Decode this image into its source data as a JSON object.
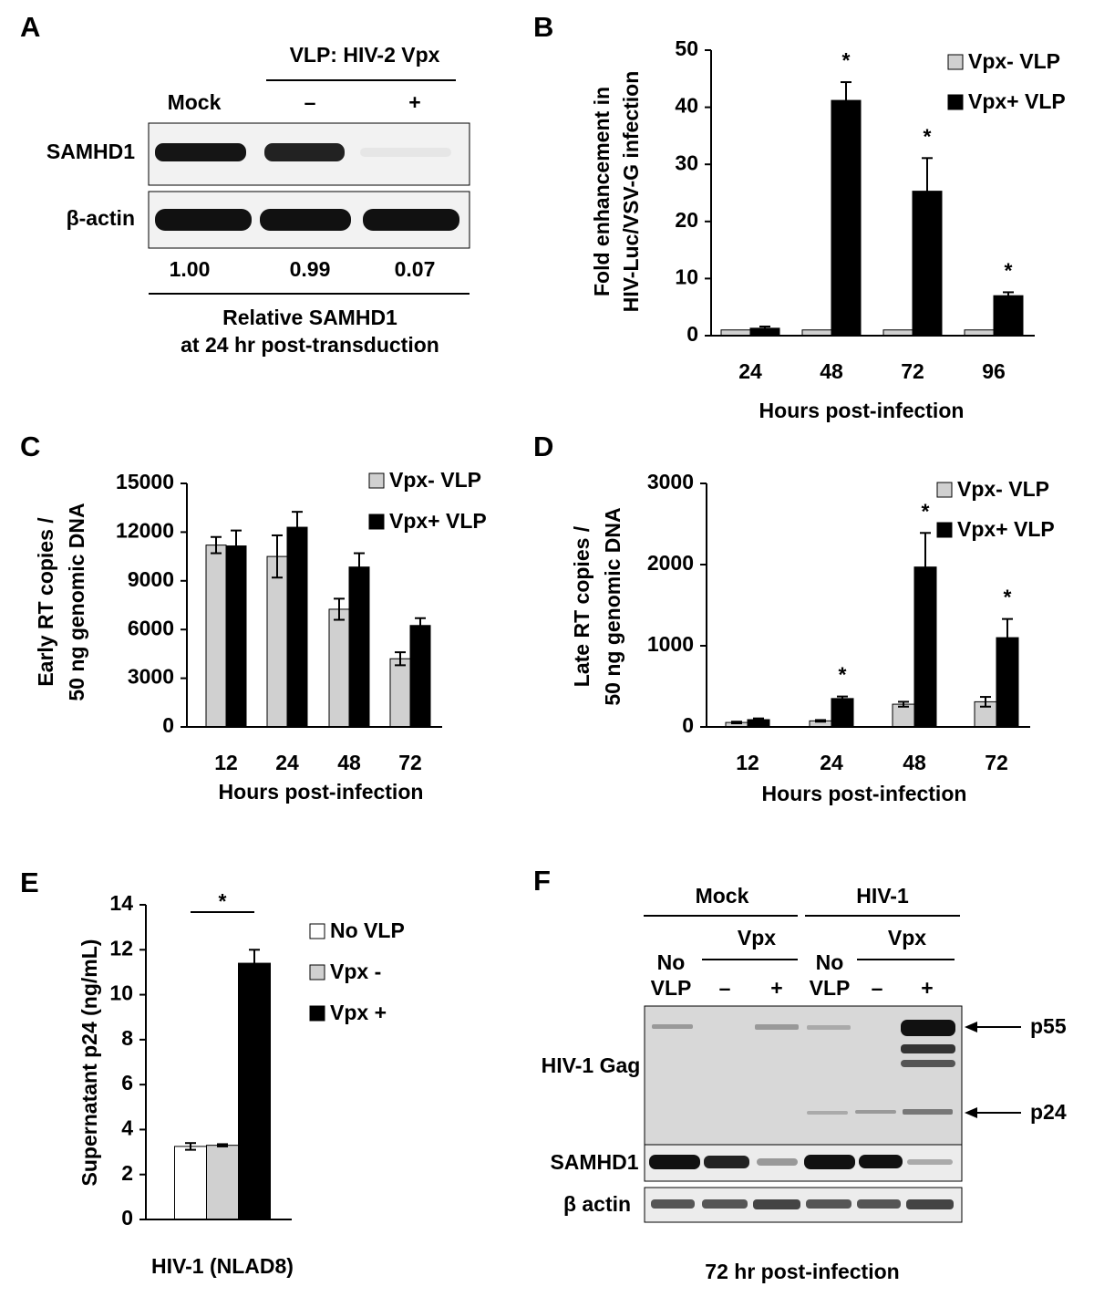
{
  "chart_data": [
    {
      "type": "bar",
      "panel": "B",
      "ylabel": [
        "Fold enhancement in",
        "HIV-Luc/VSV-G infection"
      ],
      "xlabel": "Hours post-infection",
      "categories": [
        "24",
        "48",
        "72",
        "96"
      ],
      "series": [
        {
          "name": "Vpx- VLP",
          "color": "#d0d0d0",
          "values": [
            1,
            1,
            1,
            1
          ]
        },
        {
          "name": "Vpx+ VLP",
          "color": "#000000",
          "values": [
            1.3,
            41.2,
            25.3,
            7
          ],
          "errors": [
            0.3,
            3.2,
            5.8,
            0.6
          ]
        }
      ],
      "significance": [
        null,
        "*",
        "*",
        "*"
      ],
      "ylim": [
        0,
        50
      ],
      "yticks": [
        0,
        10,
        20,
        30,
        40,
        50
      ]
    },
    {
      "type": "bar",
      "panel": "C",
      "ylabel": [
        "Early RT copies /",
        "50 ng genomic DNA"
      ],
      "xlabel": "Hours post-infection",
      "categories": [
        "12",
        "24",
        "48",
        "72"
      ],
      "series": [
        {
          "name": "Vpx- VLP",
          "color": "#d0d0d0",
          "values": [
            11200,
            10500,
            7250,
            4200
          ],
          "errors": [
            500,
            1300,
            650,
            400
          ]
        },
        {
          "name": "Vpx+ VLP",
          "color": "#000000",
          "values": [
            11150,
            12300,
            9850,
            6250
          ],
          "errors": [
            950,
            950,
            850,
            450
          ]
        }
      ],
      "ylim": [
        0,
        15000
      ],
      "yticks": [
        0,
        3000,
        6000,
        9000,
        12000,
        15000
      ]
    },
    {
      "type": "bar",
      "panel": "D",
      "ylabel": [
        "Late RT copies /",
        "50 ng genomic DNA"
      ],
      "xlabel": "Hours post-infection",
      "categories": [
        "12",
        "24",
        "48",
        "72"
      ],
      "series": [
        {
          "name": "Vpx- VLP",
          "color": "#d0d0d0",
          "values": [
            55,
            75,
            280,
            310
          ],
          "errors": [
            10,
            10,
            30,
            60
          ]
        },
        {
          "name": "Vpx+ VLP",
          "color": "#000000",
          "values": [
            90,
            350,
            1970,
            1100
          ],
          "errors": [
            15,
            25,
            420,
            230
          ]
        }
      ],
      "significance": [
        null,
        "*",
        "*",
        "*"
      ],
      "ylim": [
        0,
        3000
      ],
      "yticks": [
        0,
        1000,
        2000,
        3000
      ]
    },
    {
      "type": "bar",
      "panel": "E",
      "ylabel": [
        "Supernatant p24 (ng/mL)"
      ],
      "categories": [
        "HIV-1 (NLAD8)"
      ],
      "series": [
        {
          "name": "No VLP",
          "color": "#ffffff",
          "values": [
            3.25
          ],
          "errors": [
            0.15
          ]
        },
        {
          "name": "Vpx -",
          "color": "#d0d0d0",
          "values": [
            3.3
          ],
          "errors": [
            0.05
          ]
        },
        {
          "name": "Vpx +",
          "color": "#000000",
          "values": [
            11.4
          ],
          "errors": [
            0.6
          ]
        }
      ],
      "significance": "*",
      "ylim": [
        0,
        14
      ],
      "yticks": [
        0,
        2,
        4,
        6,
        8,
        10,
        12,
        14
      ]
    }
  ],
  "blot_a": {
    "panel": "A",
    "header": "VLP: HIV-2 Vpx",
    "lanes": [
      "Mock",
      "–",
      "+"
    ],
    "rows": [
      "SAMHD1",
      "β-actin"
    ],
    "quantities": [
      "1.00",
      "0.99",
      "0.07"
    ],
    "footer": [
      "Relative SAMHD1",
      "at 24 hr post-transduction"
    ]
  },
  "blot_f": {
    "panel": "F",
    "groups": [
      "Mock",
      "HIV-1"
    ],
    "subgroups": [
      "Vpx",
      "Vpx"
    ],
    "lanes": [
      [
        "No",
        "VLP"
      ],
      [
        "–"
      ],
      [
        "+"
      ],
      [
        "No",
        "VLP"
      ],
      [
        "–"
      ],
      [
        "+"
      ]
    ],
    "rows": [
      "HIV-1 Gag",
      "SAMHD1",
      "β actin"
    ],
    "bands": [
      "p55",
      "p24"
    ],
    "footer": "72 hr post-infection"
  }
}
